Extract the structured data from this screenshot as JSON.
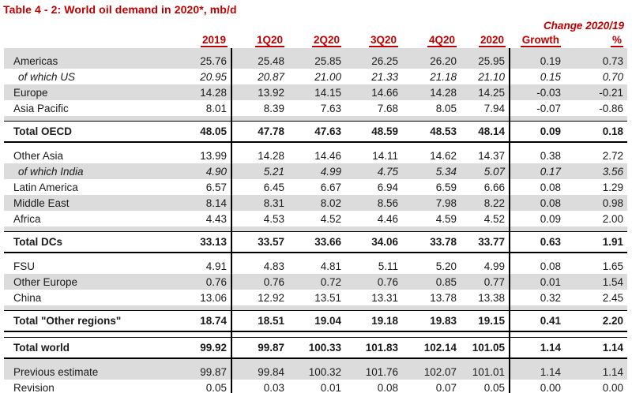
{
  "title": "Table 4 - 2: World oil demand in 2020*, mb/d",
  "colors": {
    "accent_red": "#C00000",
    "row_shade": "#DCDCDC",
    "rule_black": "#000000"
  },
  "header": {
    "change_label": "Change 2020/19",
    "columns": [
      "2019",
      "1Q20",
      "2Q20",
      "3Q20",
      "4Q20",
      "2020",
      "Growth",
      "%"
    ]
  },
  "table": {
    "rows": [
      {
        "kind": "spacer",
        "shade": true
      },
      {
        "kind": "data",
        "shade": true,
        "label": "Americas",
        "values": [
          "25.76",
          "25.48",
          "25.85",
          "26.25",
          "26.20",
          "25.95",
          "0.19",
          "0.73"
        ]
      },
      {
        "kind": "ital",
        "shade": false,
        "label": "of which US",
        "values": [
          "20.95",
          "20.87",
          "21.00",
          "21.33",
          "21.18",
          "21.10",
          "0.15",
          "0.70"
        ]
      },
      {
        "kind": "data",
        "shade": true,
        "label": "Europe",
        "values": [
          "14.28",
          "13.92",
          "14.15",
          "14.66",
          "14.28",
          "14.25",
          "-0.03",
          "-0.21"
        ]
      },
      {
        "kind": "data",
        "shade": false,
        "label": "Asia Pacific",
        "values": [
          "8.01",
          "8.39",
          "7.63",
          "7.68",
          "8.05",
          "7.94",
          "-0.07",
          "-0.86"
        ]
      },
      {
        "kind": "spacer",
        "shade": true
      },
      {
        "kind": "total",
        "shade": false,
        "label": "Total OECD",
        "values": [
          "48.05",
          "47.78",
          "47.63",
          "48.59",
          "48.53",
          "48.14",
          "0.09",
          "0.18"
        ]
      },
      {
        "kind": "spacer",
        "shade": false
      },
      {
        "kind": "data",
        "shade": false,
        "label": "Other Asia",
        "values": [
          "13.99",
          "14.28",
          "14.46",
          "14.11",
          "14.62",
          "14.37",
          "0.38",
          "2.72"
        ]
      },
      {
        "kind": "ital",
        "shade": true,
        "label": "of which India",
        "values": [
          "4.90",
          "5.21",
          "4.99",
          "4.75",
          "5.34",
          "5.07",
          "0.17",
          "3.56"
        ]
      },
      {
        "kind": "data",
        "shade": false,
        "label": "Latin America",
        "values": [
          "6.57",
          "6.45",
          "6.67",
          "6.94",
          "6.59",
          "6.66",
          "0.08",
          "1.29"
        ]
      },
      {
        "kind": "data",
        "shade": true,
        "label": "Middle East",
        "values": [
          "8.14",
          "8.31",
          "8.02",
          "8.56",
          "7.98",
          "8.22",
          "0.08",
          "0.98"
        ]
      },
      {
        "kind": "data",
        "shade": false,
        "label": "Africa",
        "values": [
          "4.43",
          "4.53",
          "4.52",
          "4.46",
          "4.59",
          "4.52",
          "0.09",
          "2.00"
        ]
      },
      {
        "kind": "spacer",
        "shade": true
      },
      {
        "kind": "total",
        "shade": false,
        "label": "Total DCs",
        "values": [
          "33.13",
          "33.57",
          "33.66",
          "34.06",
          "33.78",
          "33.77",
          "0.63",
          "1.91"
        ]
      },
      {
        "kind": "spacer",
        "shade": false
      },
      {
        "kind": "data",
        "shade": false,
        "label": "FSU",
        "values": [
          "4.91",
          "4.83",
          "4.81",
          "5.11",
          "5.20",
          "4.99",
          "0.08",
          "1.65"
        ]
      },
      {
        "kind": "data",
        "shade": true,
        "label": "Other Europe",
        "values": [
          "0.76",
          "0.76",
          "0.72",
          "0.76",
          "0.85",
          "0.77",
          "0.01",
          "1.54"
        ]
      },
      {
        "kind": "data",
        "shade": false,
        "label": "China",
        "values": [
          "13.06",
          "12.92",
          "13.51",
          "13.31",
          "13.78",
          "13.38",
          "0.32",
          "2.45"
        ]
      },
      {
        "kind": "spacer",
        "shade": true
      },
      {
        "kind": "total",
        "shade": false,
        "label": "Total \"Other regions\"",
        "values": [
          "18.74",
          "18.51",
          "19.04",
          "19.18",
          "19.83",
          "19.15",
          "0.41",
          "2.20"
        ]
      },
      {
        "kind": "spacer",
        "shade": false
      },
      {
        "kind": "total",
        "shade": false,
        "label": "Total world",
        "values": [
          "99.92",
          "99.87",
          "100.33",
          "101.83",
          "102.14",
          "101.05",
          "1.14",
          "1.14"
        ]
      },
      {
        "kind": "spacer",
        "shade": true
      },
      {
        "kind": "data",
        "shade": true,
        "label": "Previous estimate",
        "values": [
          "99.87",
          "99.84",
          "100.32",
          "101.76",
          "102.07",
          "101.01",
          "1.14",
          "1.14"
        ]
      },
      {
        "kind": "data",
        "shade": false,
        "last": true,
        "label": "Revision",
        "values": [
          "0.05",
          "0.03",
          "0.01",
          "0.08",
          "0.07",
          "0.05",
          "0.00",
          "0.00"
        ]
      }
    ]
  }
}
